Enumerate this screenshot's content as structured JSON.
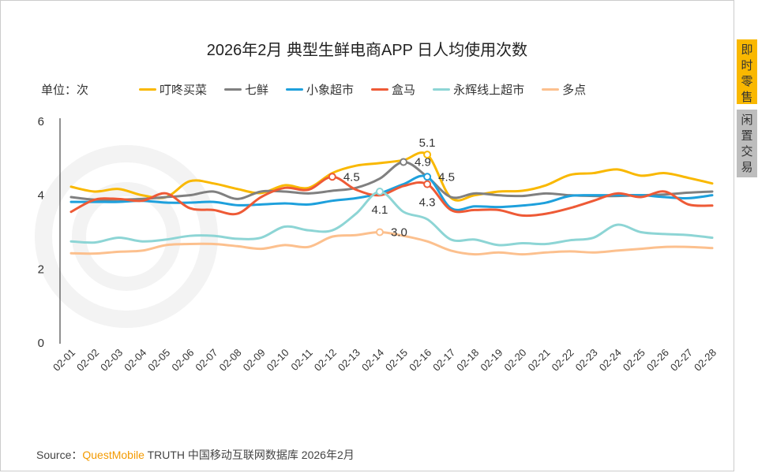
{
  "side_tabs": [
    {
      "label": "即时零售",
      "active": true
    },
    {
      "label": "闲置交易",
      "active": false
    }
  ],
  "source": {
    "prefix": "Source：",
    "brand": "QuestMobile",
    "rest": " TRUTH 中国移动互联网数据库 2026年2月"
  },
  "chart_data": {
    "type": "line",
    "title": "2026年2月 典型生鲜电商APP 日人均使用次数",
    "unit_label": "单位：次",
    "ylim": [
      0,
      6
    ],
    "yticks": [
      0,
      2,
      4,
      6
    ],
    "grid": false,
    "legend_position": "top",
    "watermark": "QUEST MOBILE",
    "x": [
      "02-01",
      "02-02",
      "02-03",
      "02-04",
      "02-05",
      "02-06",
      "02-07",
      "02-08",
      "02-09",
      "02-10",
      "02-11",
      "02-12",
      "02-13",
      "02-14",
      "02-15",
      "02-16",
      "02-17",
      "02-18",
      "02-19",
      "02-20",
      "02-21",
      "02-22",
      "02-23",
      "02-24",
      "02-25",
      "02-26",
      "02-27",
      "02-28"
    ],
    "series": [
      {
        "name": "叮咚买菜",
        "color": "#f9b800",
        "values": [
          4.23,
          4.1,
          4.17,
          4.0,
          3.95,
          4.38,
          4.32,
          4.17,
          4.06,
          4.27,
          4.2,
          4.6,
          4.8,
          4.87,
          4.95,
          5.1,
          3.93,
          4.0,
          4.1,
          4.12,
          4.27,
          4.55,
          4.6,
          4.7,
          4.53,
          4.6,
          4.47,
          4.32
        ]
      },
      {
        "name": "七鲜",
        "color": "#808080",
        "values": [
          3.95,
          3.88,
          3.88,
          3.9,
          3.95,
          4.0,
          4.1,
          3.9,
          4.1,
          4.1,
          4.05,
          4.12,
          4.2,
          4.45,
          4.9,
          4.5,
          3.95,
          4.05,
          4.0,
          3.98,
          4.05,
          4.0,
          3.98,
          3.98,
          4.0,
          4.02,
          4.07,
          4.1
        ]
      },
      {
        "name": "小象超市",
        "color": "#1ea0dc",
        "values": [
          3.82,
          3.82,
          3.82,
          3.85,
          3.8,
          3.8,
          3.82,
          3.73,
          3.75,
          3.78,
          3.75,
          3.85,
          3.92,
          4.05,
          4.3,
          4.5,
          3.65,
          3.7,
          3.68,
          3.72,
          3.8,
          3.98,
          4.0,
          4.0,
          4.0,
          3.95,
          3.92,
          4.0
        ]
      },
      {
        "name": "盒马",
        "color": "#ee5a36",
        "values": [
          3.55,
          3.88,
          3.9,
          3.85,
          4.05,
          3.65,
          3.6,
          3.5,
          3.95,
          4.2,
          4.15,
          4.5,
          4.15,
          4.0,
          4.25,
          4.3,
          3.6,
          3.6,
          3.6,
          3.45,
          3.5,
          3.65,
          3.85,
          4.05,
          3.95,
          4.1,
          3.75,
          3.72
        ]
      },
      {
        "name": "永辉线上超市",
        "color": "#8dd5d5",
        "values": [
          2.75,
          2.72,
          2.85,
          2.75,
          2.8,
          2.9,
          2.9,
          2.82,
          2.85,
          3.15,
          3.05,
          3.05,
          3.5,
          4.1,
          3.55,
          3.35,
          2.8,
          2.8,
          2.65,
          2.7,
          2.68,
          2.78,
          2.85,
          3.2,
          3.0,
          2.95,
          2.92,
          2.85
        ]
      },
      {
        "name": "多点",
        "color": "#fcc08e",
        "values": [
          2.43,
          2.42,
          2.47,
          2.5,
          2.65,
          2.68,
          2.68,
          2.62,
          2.55,
          2.65,
          2.6,
          2.88,
          2.92,
          3.0,
          2.9,
          2.75,
          2.5,
          2.4,
          2.45,
          2.4,
          2.45,
          2.48,
          2.45,
          2.5,
          2.55,
          2.6,
          2.6,
          2.57
        ]
      }
    ],
    "annotations": [
      {
        "series": 3,
        "x": "02-12",
        "text": "4.5",
        "pos": "right"
      },
      {
        "series": 4,
        "x": "02-14",
        "text": "4.1",
        "pos": "below"
      },
      {
        "series": 5,
        "x": "02-14",
        "text": "3.0",
        "pos": "right"
      },
      {
        "series": 1,
        "x": "02-15",
        "text": "4.9",
        "pos": "right"
      },
      {
        "series": 0,
        "x": "02-16",
        "text": "5.1",
        "pos": "above"
      },
      {
        "series": 2,
        "x": "02-16",
        "text": "4.5",
        "pos": "right"
      },
      {
        "series": 3,
        "x": "02-16",
        "text": "4.3",
        "pos": "below"
      }
    ]
  }
}
